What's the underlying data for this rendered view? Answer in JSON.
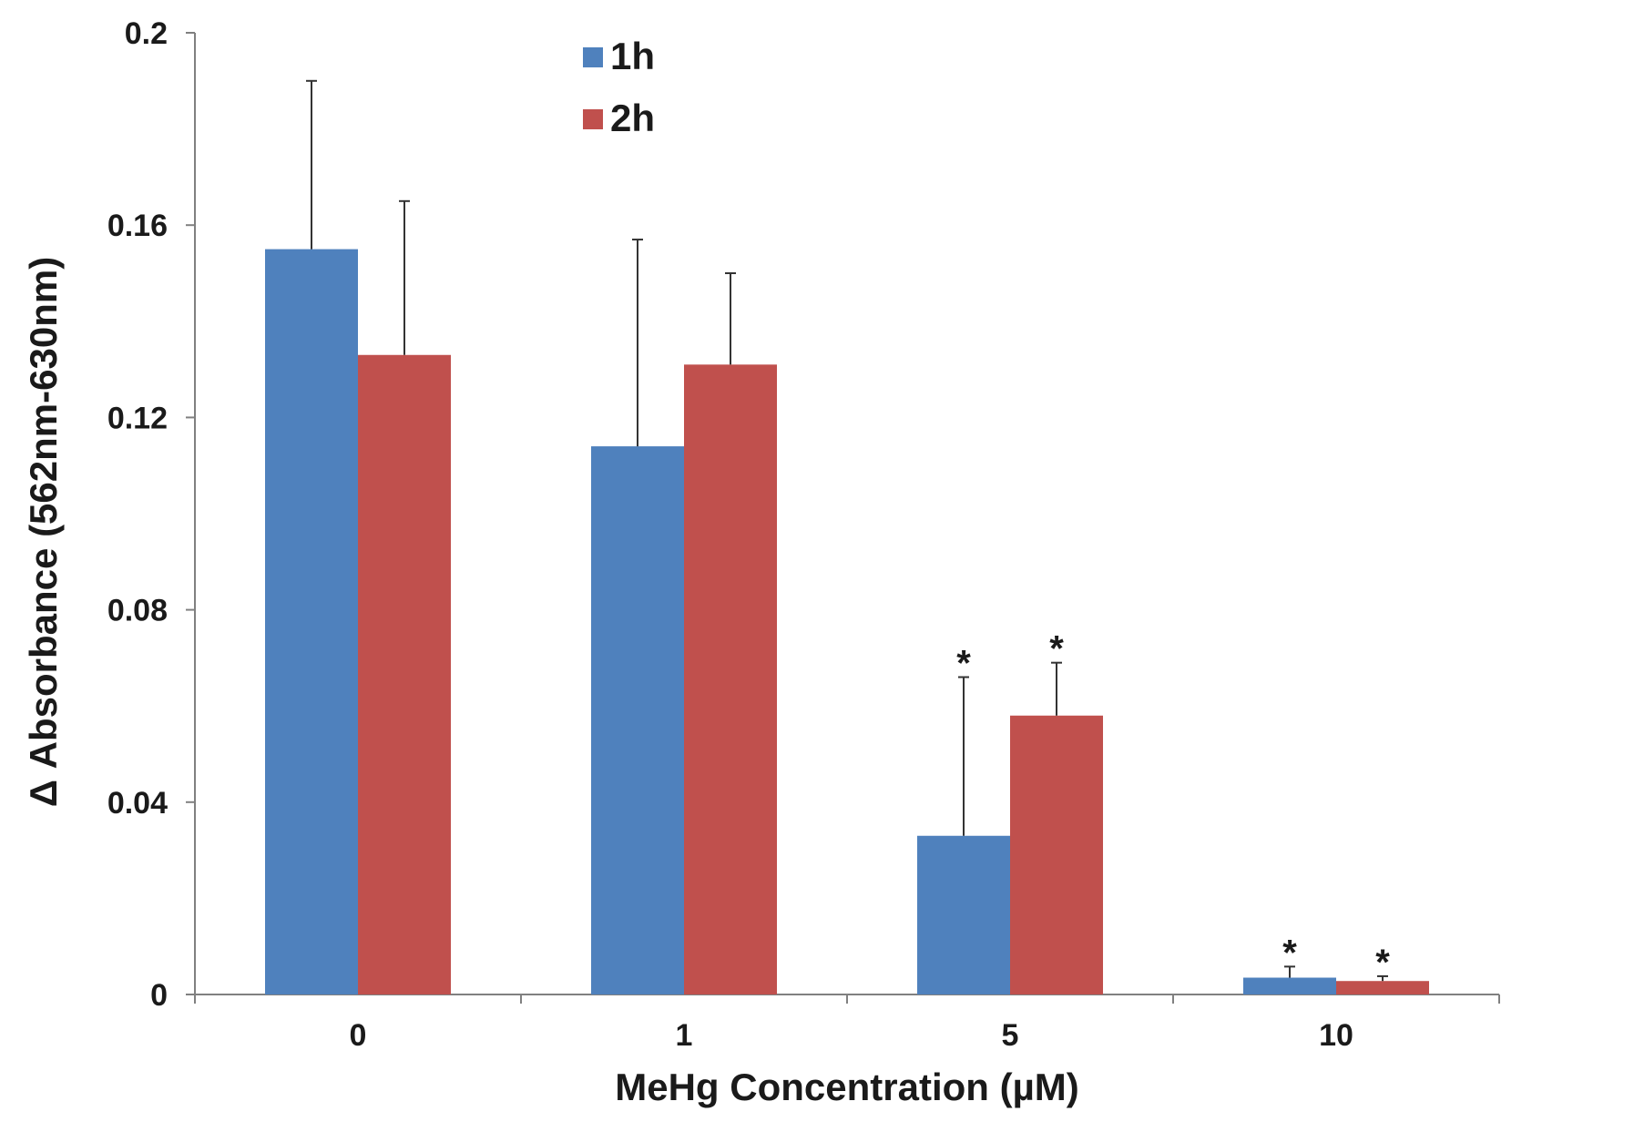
{
  "chart_data": {
    "type": "bar",
    "title": "",
    "xlabel": "MeHg Concentration (µM)",
    "ylabel": "Δ Absorbance (562nm-630nm)",
    "categories": [
      "0",
      "1",
      "5",
      "10"
    ],
    "ylim": [
      0,
      0.2
    ],
    "yticks": [
      0,
      0.04,
      0.08,
      0.12,
      0.16,
      0.2
    ],
    "ytick_labels": [
      "0",
      "0.04",
      "0.08",
      "0.12",
      "0.16",
      "0.2"
    ],
    "grid": false,
    "legend_position": "top-center",
    "series": [
      {
        "name": "1h",
        "color": "#4f81bd",
        "values": [
          0.155,
          0.114,
          0.033,
          0.0035
        ],
        "error_upper": [
          0.19,
          0.157,
          0.066,
          0.0058
        ],
        "significance": [
          "",
          "",
          "*",
          "*"
        ]
      },
      {
        "name": "2h",
        "color": "#c0504d",
        "values": [
          0.133,
          0.131,
          0.058,
          0.0028
        ],
        "error_upper": [
          0.165,
          0.15,
          0.069,
          0.0038
        ],
        "significance": [
          "",
          "",
          "*",
          "*"
        ]
      }
    ]
  }
}
